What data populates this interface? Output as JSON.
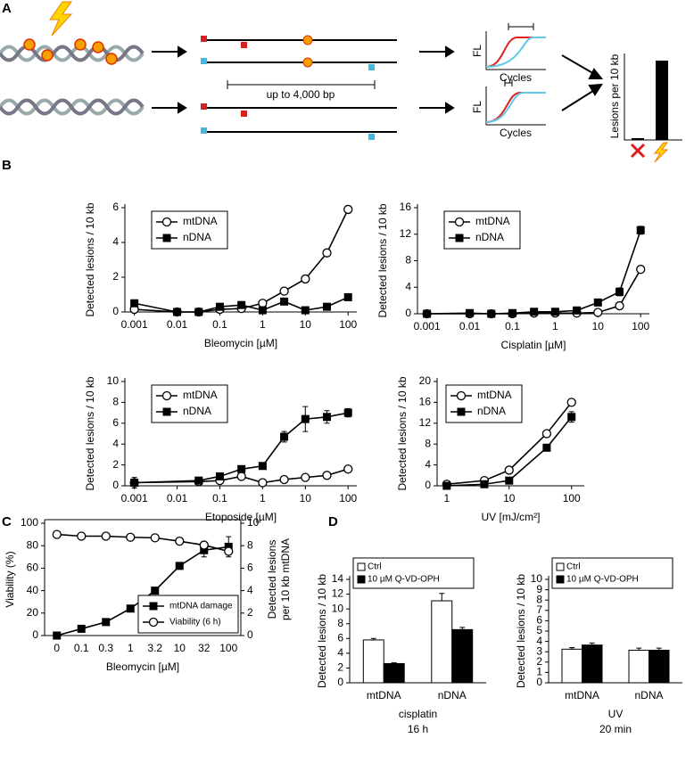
{
  "panel_labels": [
    "A",
    "B",
    "C",
    "D"
  ],
  "panel_a": {
    "span_label": "up to 4,000 bp",
    "qpcr_top": {
      "y_label": "FL",
      "x_label": "Cycles"
    },
    "qpcr_bottom": {
      "y_label": "FL",
      "x_label": "Cycles"
    },
    "bar_y_label": "Lesions per 10 kb"
  },
  "chart_data": [
    {
      "type": "line",
      "x_label": "Bleomycin [µM]",
      "y_label": "Detected lesions / 10 kb",
      "xlog": true,
      "xlim": [
        0.0006,
        160
      ],
      "xticks": [
        0.001,
        0.01,
        0.1,
        1,
        10,
        100
      ],
      "ylim": [
        0,
        6
      ],
      "yticks": [
        0,
        2,
        4,
        6
      ],
      "legend": "upper left",
      "x": [
        0.001,
        0.01,
        0.032,
        0.1,
        0.32,
        1,
        3.2,
        10,
        32,
        100
      ],
      "series": [
        {
          "name": "mtDNA",
          "marker": "circle",
          "color": "#000000",
          "values": [
            0.15,
            0,
            0,
            0.15,
            0.2,
            0.5,
            1.2,
            1.9,
            3.4,
            5.9
          ],
          "errors": [
            0.05,
            0.03,
            0.03,
            0.05,
            0.05,
            0.1,
            0.1,
            0.15,
            0.1,
            0.2
          ]
        },
        {
          "name": "nDNA",
          "marker": "square",
          "color": "#000000",
          "values": [
            0.5,
            0,
            0,
            0.3,
            0.4,
            0.1,
            0.6,
            0.1,
            0.3,
            0.85
          ],
          "errors": [
            0.05,
            0.03,
            0.03,
            0.05,
            0.05,
            0.05,
            0.05,
            0.05,
            0.05,
            0.1
          ]
        }
      ]
    },
    {
      "type": "line",
      "x_label": "Cisplatin [µM]",
      "y_label": "Detected lesions / 10 kb",
      "xlog": true,
      "xlim": [
        0.0006,
        160
      ],
      "xticks": [
        0.001,
        0.01,
        0.1,
        1,
        10,
        100
      ],
      "ylim": [
        0,
        16
      ],
      "yticks": [
        0,
        4,
        8,
        12,
        16
      ],
      "legend": "upper left",
      "x": [
        0.001,
        0.01,
        0.032,
        0.1,
        0.32,
        1,
        3.2,
        10,
        32,
        100
      ],
      "series": [
        {
          "name": "mtDNA",
          "marker": "circle",
          "color": "#000000",
          "values": [
            0,
            0,
            0,
            0,
            0.1,
            0.1,
            0.1,
            0.2,
            1.2,
            6.7
          ],
          "errors": [
            0.1,
            0.1,
            0.1,
            0.1,
            0.1,
            0.1,
            0.1,
            0.1,
            0.2,
            0.3
          ]
        },
        {
          "name": "nDNA",
          "marker": "square",
          "color": "#000000",
          "values": [
            0,
            0.1,
            0,
            0.1,
            0.3,
            0.3,
            0.5,
            1.7,
            3.3,
            12.6
          ],
          "errors": [
            0.1,
            0.1,
            0.1,
            0.1,
            0.2,
            0.2,
            0.2,
            0.3,
            0.6,
            0.6
          ]
        }
      ]
    },
    {
      "type": "line",
      "x_label": "Etoposide [µM]",
      "y_label": "Detected lesions / 10 kb",
      "xlog": true,
      "xlim": [
        0.0006,
        160
      ],
      "xticks": [
        0.001,
        0.01,
        0.1,
        1,
        10,
        100
      ],
      "ylim": [
        0,
        10
      ],
      "yticks": [
        0,
        2,
        4,
        6,
        8,
        10
      ],
      "legend": "upper left",
      "x": [
        0.001,
        0.032,
        0.1,
        0.32,
        1,
        3.2,
        10,
        32,
        100
      ],
      "series": [
        {
          "name": "mtDNA",
          "marker": "circle",
          "color": "#000000",
          "values": [
            0.3,
            0.4,
            0.5,
            0.9,
            0.3,
            0.6,
            0.8,
            1.0,
            1.6
          ],
          "errors": [
            0.1,
            0.1,
            0.1,
            0.1,
            0.1,
            0.1,
            0.1,
            0.1,
            0.1
          ]
        },
        {
          "name": "nDNA",
          "marker": "square",
          "color": "#000000",
          "values": [
            0.3,
            0.5,
            0.9,
            1.6,
            1.9,
            4.7,
            6.4,
            6.6,
            7.0
          ],
          "errors": [
            0.5,
            0.3,
            0.2,
            0.2,
            0.2,
            0.5,
            1.2,
            0.6,
            0.4
          ]
        }
      ]
    },
    {
      "type": "line",
      "x_label": "UV [mJ/cm²]",
      "y_label": "Detected lesions / 10 kb",
      "xlog": true,
      "xlim": [
        0.7,
        160
      ],
      "xticks": [
        1,
        10,
        100
      ],
      "ylim": [
        0,
        20
      ],
      "yticks": [
        0,
        4,
        8,
        12,
        16,
        20
      ],
      "legend": "upper left",
      "x": [
        1,
        4,
        10,
        40,
        100
      ],
      "series": [
        {
          "name": "mtDNA",
          "marker": "circle",
          "color": "#000000",
          "values": [
            0.3,
            1.0,
            3.0,
            10,
            16
          ],
          "errors": [
            0.1,
            0.1,
            0.1,
            0.2,
            0.2
          ]
        },
        {
          "name": "nDNA",
          "marker": "square",
          "color": "#000000",
          "values": [
            0,
            0.3,
            1,
            7.3,
            13.2
          ],
          "errors": [
            0.1,
            0.1,
            0.1,
            0.3,
            1.0
          ]
        }
      ]
    },
    {
      "type": "line",
      "x_label": "Bleomycin [µM]",
      "y_label": "Viability (%)",
      "y2_label": [
        "Detected lesions",
        "per 10 kb mtDNA"
      ],
      "categories": [
        "0",
        "0.1",
        "0.3",
        "1",
        "3.2",
        "10",
        "32",
        "100"
      ],
      "ylim": [
        0,
        100
      ],
      "yticks": [
        0,
        20,
        40,
        60,
        80,
        100
      ],
      "y2lim": [
        0,
        10
      ],
      "y2ticks": [
        0,
        2,
        4,
        6,
        8,
        10
      ],
      "legend": "lower right",
      "series": [
        {
          "name": "mtDNA damage",
          "axis": "y2",
          "marker": "square",
          "color": "#000000",
          "values": [
            0,
            0.6,
            1.2,
            2.4,
            4.0,
            6.2,
            7.6,
            7.9
          ],
          "errors": [
            0.05,
            0.05,
            0.05,
            0.05,
            0.05,
            0.1,
            0.6,
            0.9
          ]
        },
        {
          "name": "Viability (6 h)",
          "marker": "circle",
          "color": "#000000",
          "values": [
            90,
            88.5,
            88.5,
            87.5,
            87,
            84,
            80.5,
            75
          ],
          "errors": [
            0.5,
            0.5,
            0.5,
            0.5,
            0.5,
            1,
            1.5,
            3
          ]
        }
      ]
    },
    {
      "type": "bar",
      "y_label": "Detected lesions / 10 kb",
      "caption": [
        "cisplatin",
        "16 h"
      ],
      "categories": [
        "mtDNA",
        "nDNA"
      ],
      "ylim": [
        0,
        14
      ],
      "yticks": [
        0,
        2,
        4,
        6,
        8,
        10,
        12,
        14
      ],
      "legend": "upper left",
      "series": [
        {
          "name": "Ctrl",
          "color": "#ffffff",
          "values": [
            5.8,
            11.1
          ],
          "errors": [
            0.2,
            1.0
          ]
        },
        {
          "name": "10 µM Q-VD-OPH",
          "color": "#000000",
          "values": [
            2.6,
            7.2
          ],
          "errors": [
            0.1,
            0.3
          ]
        }
      ]
    },
    {
      "type": "bar",
      "y_label": "Detected lesions / 10 kb",
      "caption": [
        "UV",
        "20 min"
      ],
      "categories": [
        "mtDNA",
        "nDNA"
      ],
      "ylim": [
        0,
        10
      ],
      "yticks": [
        0,
        1,
        2,
        3,
        4,
        5,
        6,
        7,
        8,
        9,
        10
      ],
      "legend": "upper left",
      "series": [
        {
          "name": "Ctrl",
          "color": "#ffffff",
          "values": [
            3.25,
            3.15
          ],
          "errors": [
            0.15,
            0.2
          ]
        },
        {
          "name": "10 µM Q-VD-OPH",
          "color": "#000000",
          "values": [
            3.65,
            3.15
          ],
          "errors": [
            0.2,
            0.2
          ]
        }
      ]
    }
  ]
}
